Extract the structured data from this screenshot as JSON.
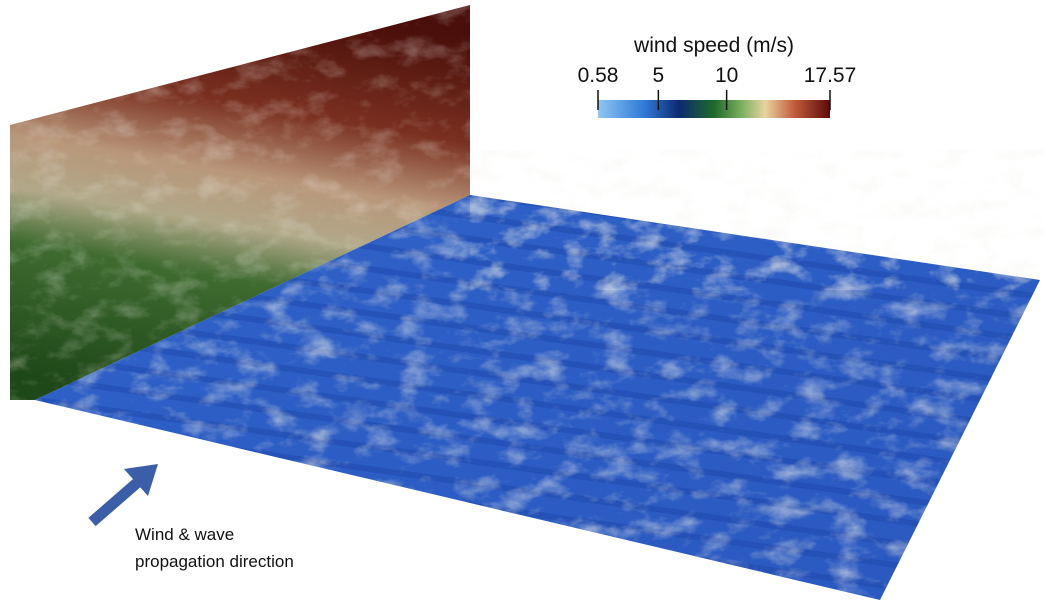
{
  "colorbar": {
    "title": "wind speed (m/s)",
    "range": [
      0.58,
      17.57
    ],
    "ticks": [
      0.58,
      5,
      10,
      17.57
    ]
  },
  "annotation": {
    "lines": [
      "Wind & wave",
      "propagation direction"
    ]
  }
}
